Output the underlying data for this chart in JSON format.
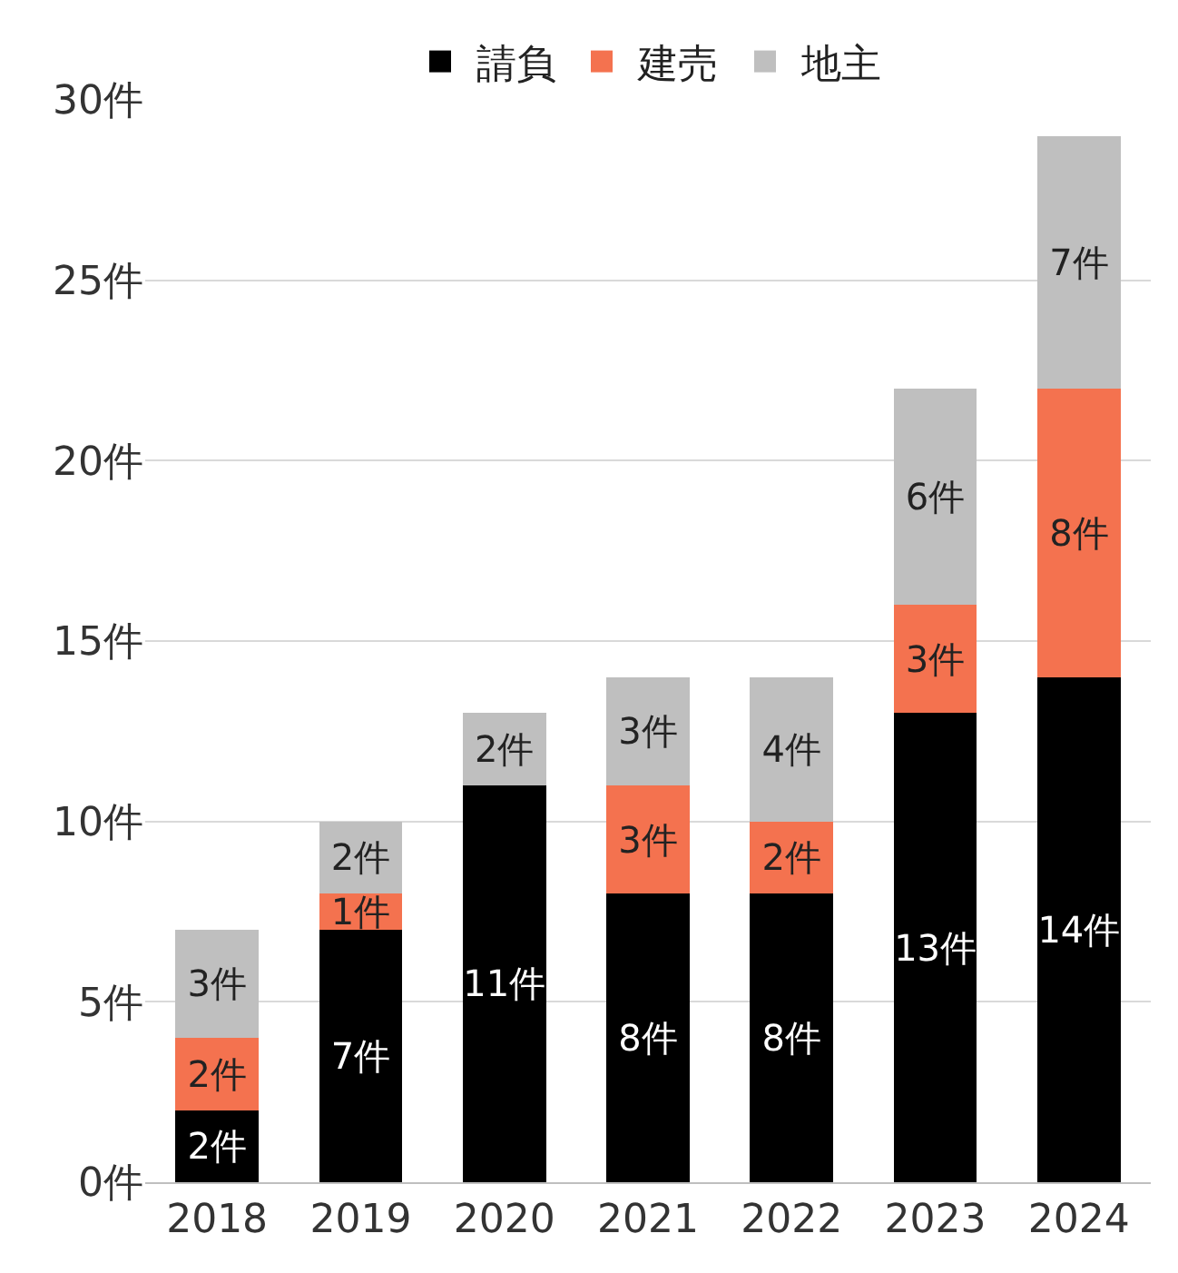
{
  "chart_data": {
    "type": "bar",
    "stacked": true,
    "categories": [
      "2018",
      "2019",
      "2020",
      "2021",
      "2022",
      "2023",
      "2024"
    ],
    "series": [
      {
        "name": "請負",
        "color": "#000000",
        "values": [
          2,
          7,
          11,
          8,
          8,
          13,
          14
        ],
        "value_labels": [
          "2件",
          "7件",
          "11件",
          "8件",
          "8件",
          "13件",
          "14件"
        ]
      },
      {
        "name": "建売",
        "color": "#f4724f",
        "values": [
          2,
          1,
          0,
          3,
          2,
          3,
          8
        ],
        "value_labels": [
          "2件",
          "1件",
          null,
          "3件",
          "2件",
          "3件",
          "8件"
        ]
      },
      {
        "name": "地主",
        "color": "#bfbfbf",
        "values": [
          3,
          2,
          2,
          3,
          4,
          6,
          7
        ],
        "value_labels": [
          "3件",
          "2件",
          "2件",
          "3件",
          "4件",
          "6件",
          "7件"
        ]
      }
    ],
    "ylim": [
      0,
      30
    ],
    "yticks": [
      {
        "value": 0,
        "label": "0件"
      },
      {
        "value": 5,
        "label": "5件"
      },
      {
        "value": 10,
        "label": "10件"
      },
      {
        "value": 15,
        "label": "15件"
      },
      {
        "value": 20,
        "label": "20件"
      },
      {
        "value": 25,
        "label": "25件"
      },
      {
        "value": 30,
        "label": "30件"
      }
    ],
    "grid": "y",
    "legend": "top"
  }
}
